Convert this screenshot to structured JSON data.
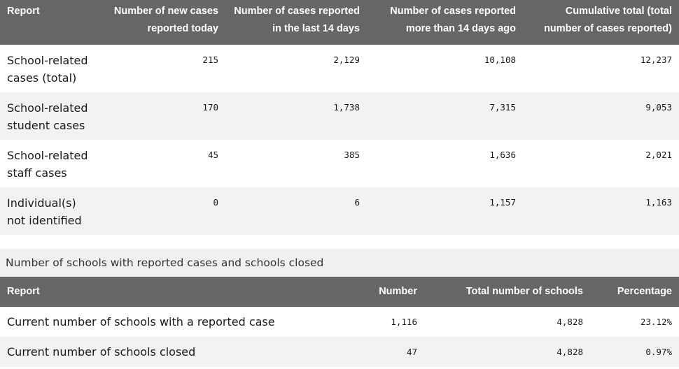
{
  "cases_table": {
    "headers": [
      "Report",
      "Number of new cases reported today",
      "Number of cases reported in the last 14 days",
      "Number of cases reported more than 14 days ago",
      "Cumulative total (total number of cases reported)"
    ],
    "rows": [
      {
        "label": "School-related cases (total)",
        "values": [
          "215",
          "2,129",
          "10,108",
          "12,237"
        ]
      },
      {
        "label": "School-related student cases",
        "values": [
          "170",
          "1,738",
          "7,315",
          "9,053"
        ]
      },
      {
        "label": "School-related staff cases",
        "values": [
          "45",
          "385",
          "1,636",
          "2,021"
        ]
      },
      {
        "label": "Individual(s) not identified",
        "values": [
          "0",
          "6",
          "1,157",
          "1,163"
        ]
      }
    ]
  },
  "schools_section": {
    "caption": "Number of schools with reported cases and schools closed",
    "headers": [
      "Report",
      "Number",
      "Total number of schools",
      "Percentage"
    ],
    "rows": [
      {
        "label": "Current number of schools with a reported case",
        "values": [
          "1,116",
          "4,828",
          "23.12%"
        ]
      },
      {
        "label": "Current number of schools closed",
        "values": [
          "47",
          "4,828",
          "0.97%"
        ]
      }
    ]
  }
}
